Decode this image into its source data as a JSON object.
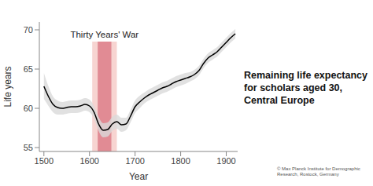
{
  "chart_data": {
    "type": "line",
    "title": [
      "Remaining life expectancy",
      "for scholars aged 30,",
      "Central Europe"
    ],
    "x_label": "Year",
    "y_label": "Life years",
    "source": [
      "© Max Planck Institute for Demographic",
      "Research, Rostock, Germany"
    ],
    "x": [
      1500,
      1510,
      1520,
      1530,
      1540,
      1550,
      1560,
      1570,
      1580,
      1590,
      1600,
      1610,
      1620,
      1630,
      1640,
      1650,
      1660,
      1670,
      1680,
      1690,
      1700,
      1710,
      1720,
      1730,
      1740,
      1750,
      1760,
      1770,
      1780,
      1790,
      1800,
      1810,
      1820,
      1830,
      1840,
      1850,
      1860,
      1870,
      1880,
      1890,
      1900,
      1910,
      1920
    ],
    "values": [
      62.8,
      61.5,
      60.5,
      60.1,
      60.0,
      60.1,
      60.2,
      60.2,
      60.3,
      60.5,
      60.3,
      59.5,
      58.0,
      57.2,
      57.3,
      58.0,
      58.3,
      57.9,
      58.0,
      59.0,
      60.2,
      60.8,
      61.3,
      61.7,
      62.0,
      62.3,
      62.6,
      62.8,
      63.1,
      63.4,
      63.6,
      63.8,
      64.0,
      64.3,
      64.8,
      65.7,
      66.4,
      66.8,
      67.2,
      67.8,
      68.4,
      69.0,
      69.5
    ],
    "lower": [
      61.2,
      60.3,
      59.5,
      59.2,
      59.2,
      59.3,
      59.4,
      59.4,
      59.5,
      59.7,
      59.5,
      58.7,
      57.1,
      56.3,
      56.4,
      57.1,
      57.4,
      57.0,
      57.2,
      58.2,
      59.4,
      60.0,
      60.6,
      61.0,
      61.3,
      61.6,
      61.9,
      62.1,
      62.4,
      62.7,
      62.9,
      63.1,
      63.4,
      63.7,
      64.2,
      65.1,
      65.8,
      66.2,
      66.6,
      67.2,
      67.8,
      68.4,
      68.9
    ],
    "upper": [
      64.5,
      62.8,
      61.5,
      61.0,
      60.8,
      60.9,
      61.0,
      61.0,
      61.1,
      61.3,
      61.1,
      60.3,
      58.9,
      58.1,
      58.2,
      58.9,
      59.2,
      58.8,
      58.8,
      59.8,
      61.0,
      61.6,
      62.0,
      62.4,
      62.7,
      63.0,
      63.3,
      63.5,
      63.8,
      64.1,
      64.3,
      64.5,
      64.6,
      64.9,
      65.4,
      66.3,
      67.0,
      67.4,
      67.8,
      68.4,
      69.0,
      69.6,
      70.1
    ],
    "color": "#000000",
    "band_color": "#d9d9d9",
    "xlim": [
      1490,
      1925
    ],
    "ylim": [
      54.5,
      71
    ],
    "xticks": [
      1500,
      1600,
      1700,
      1800,
      1900
    ],
    "yticks": [
      55,
      60,
      65,
      70
    ],
    "grid": false,
    "annotations": [
      {
        "text": "Thirty Years' War",
        "x": [
          1618,
          1648
        ],
        "outer_x": [
          1606,
          1660
        ],
        "y": [
          54.5,
          68.5
        ],
        "color": "#d9737f",
        "outer_color": "#f6cfcc"
      }
    ]
  }
}
